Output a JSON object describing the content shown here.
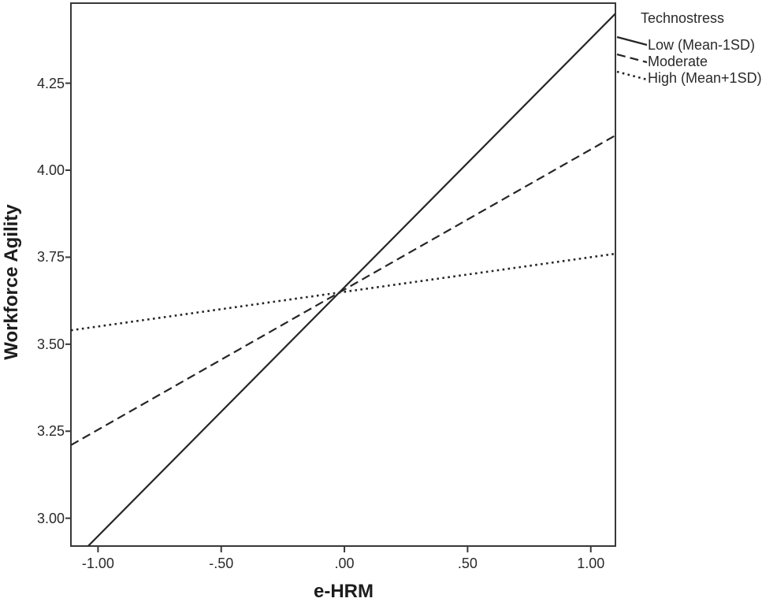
{
  "figure": {
    "background": "#ffffff",
    "frame_color": "#383838",
    "tick_color": "#383838",
    "line_color": "#262626",
    "text_color": "#2a2a2a"
  },
  "chart_data": {
    "type": "line",
    "title": "",
    "xlabel": "e-HRM",
    "ylabel": "Workforce Agility",
    "xlim": [
      -1.11,
      1.1
    ],
    "ylim": [
      2.92,
      4.48
    ],
    "grid": false,
    "x_ticks": [
      {
        "value": -1.0,
        "label": "-1.00"
      },
      {
        "value": -0.5,
        "label": "-.50"
      },
      {
        "value": 0.0,
        "label": ".00"
      },
      {
        "value": 0.5,
        "label": ".50"
      },
      {
        "value": 1.0,
        "label": "1.00"
      }
    ],
    "y_ticks": [
      {
        "value": 3.0,
        "label": "3.00"
      },
      {
        "value": 3.25,
        "label": "3.25"
      },
      {
        "value": 3.5,
        "label": "3.50"
      },
      {
        "value": 3.75,
        "label": "3.75"
      },
      {
        "value": 4.0,
        "label": "4.00"
      },
      {
        "value": 4.25,
        "label": "4.25"
      }
    ],
    "legend": {
      "title": "Technostress",
      "position": "top-right-outside",
      "entries": [
        {
          "label": "Low (Mean-1SD)",
          "style": "solid"
        },
        {
          "label": "Moderate",
          "style": "dashed"
        },
        {
          "label": "High (Mean+1SD)",
          "style": "dotted"
        }
      ]
    },
    "series": [
      {
        "name": "Low (Mean-1SD)",
        "style": "solid",
        "x": [
          -1.11,
          1.1
        ],
        "y": [
          2.87,
          4.45
        ]
      },
      {
        "name": "Moderate",
        "style": "dashed",
        "x": [
          -1.11,
          1.1
        ],
        "y": [
          3.21,
          4.1
        ]
      },
      {
        "name": "High (Mean+1SD)",
        "style": "dotted",
        "x": [
          -1.11,
          1.1
        ],
        "y": [
          3.54,
          3.76
        ]
      }
    ]
  }
}
